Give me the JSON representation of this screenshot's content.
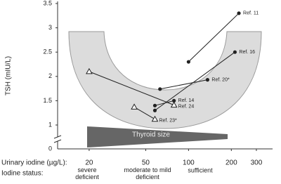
{
  "chart_data": {
    "type": "line",
    "y_label": "TSH (mIU/L)",
    "ylim": [
      1,
      3.5
    ],
    "yticks": [
      1,
      1.5,
      2,
      2.5,
      3,
      3.5
    ],
    "y_axis_break": true,
    "y_below_break_tick": 0,
    "x_scale": "log",
    "xlim": [
      12,
      390
    ],
    "xticks": [
      20,
      50,
      100,
      200,
      300
    ],
    "x_label": "Urinary iodine (µg/L):",
    "status_label": "Iodine status:",
    "status": [
      [
        "severe",
        "deficient"
      ],
      [
        "moderate to mild",
        "deficient"
      ],
      [
        "sufficient"
      ]
    ],
    "band_label": "Thyroid size",
    "series": [
      {
        "name": "Ref. 11",
        "marker": "circle",
        "color": "#222222",
        "x": [
          100,
          226
        ],
        "values": [
          2.3,
          3.3
        ]
      },
      {
        "name": "Ref. 16",
        "marker": "circle",
        "color": "#222222",
        "x": [
          58,
          212
        ],
        "values": [
          1.3,
          2.5
        ]
      },
      {
        "name": "Ref. 20*",
        "marker": "circle",
        "color": "#222222",
        "x": [
          63,
          136
        ],
        "values": [
          1.74,
          1.93
        ]
      },
      {
        "name": "Ref. 14",
        "marker": "circle",
        "color": "#222222",
        "x": [
          58,
          79
        ],
        "values": [
          1.4,
          1.5
        ]
      },
      {
        "name": "Ref. 24",
        "marker": "triangle",
        "color": "#222222",
        "x": [
          20,
          79
        ],
        "values": [
          2.1,
          1.41
        ]
      },
      {
        "name": "Ref. 23*",
        "marker": "triangle",
        "color": "#222222",
        "x": [
          41.5,
          58
        ],
        "values": [
          1.37,
          1.12
        ]
      }
    ]
  }
}
